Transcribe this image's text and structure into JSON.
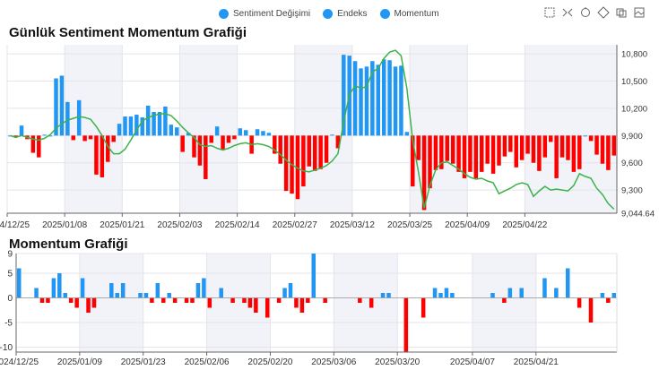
{
  "legend": {
    "items": [
      {
        "label": "Sentiment Değişimi",
        "color": "#2196f3"
      },
      {
        "label": "Endeks",
        "color": "#2196f3"
      },
      {
        "label": "Momentum",
        "color": "#2196f3"
      }
    ]
  },
  "toolbox": {
    "icons": [
      "zoom-select-icon",
      "zoom-reset-icon",
      "restore-icon",
      "fullscreen-icon",
      "data-view-icon",
      "save-image-icon"
    ]
  },
  "colors": {
    "positive": "#2196f3",
    "negative": "#ff0000",
    "line": "#3cb34a",
    "shade": "#f2f3f8"
  },
  "chart_data": [
    {
      "type": "bar",
      "title": "Günlük Sentiment Momentum Grafiği",
      "y_axis_position": "right",
      "ylim": [
        9044.64,
        10900
      ],
      "y_ticks": [
        9044.64,
        9300,
        9600,
        9900,
        10200,
        10500,
        10800
      ],
      "y_tick_labels": [
        "9,044.64",
        "9,300",
        "9,600",
        "9,900",
        "10,200",
        "10,500",
        "10,800"
      ],
      "baseline": 9900,
      "x_tick_labels": [
        "2024/12/25",
        "2025/01/08",
        "2025/01/21",
        "2025/02/03",
        "2025/02/14",
        "2025/02/27",
        "2025/03/12",
        "2025/03/25",
        "2025/04/09",
        "2025/04/22"
      ],
      "x_tick_index": [
        0,
        10,
        20,
        30,
        40,
        50,
        60,
        70,
        80,
        90
      ],
      "series": [
        {
          "name": "Endeks",
          "type": "bar",
          "values": [
            9900,
            9880,
            10010,
            9860,
            9710,
            9660,
            9910,
            9900,
            10530,
            10560,
            10270,
            9850,
            10290,
            9840,
            9860,
            9470,
            9440,
            9610,
            9830,
            10030,
            10110,
            10110,
            10130,
            10100,
            10230,
            10160,
            10160,
            10220,
            10020,
            9990,
            9720,
            9930,
            9660,
            9570,
            9420,
            9820,
            10000,
            9750,
            9820,
            9860,
            9980,
            9960,
            9700,
            9970,
            9950,
            9930,
            9700,
            9590,
            9290,
            9260,
            9200,
            9340,
            9560,
            9510,
            9530,
            9600,
            9910,
            9760,
            10790,
            10780,
            10720,
            10640,
            10660,
            10720,
            10680,
            10740,
            10730,
            10660,
            10670,
            9940,
            9340,
            9630,
            9080,
            9320,
            9520,
            9530,
            9620,
            9590,
            9500,
            9430,
            9500,
            9430,
            9500,
            9590,
            9480,
            9570,
            9670,
            9720,
            9550,
            9630,
            9700,
            9600,
            9510,
            9660,
            9830,
            9430,
            9660,
            9630,
            9500,
            9530,
            9900,
            9840,
            9690,
            9590,
            9520,
            9680
          ]
        },
        {
          "name": "Momentum",
          "type": "line",
          "values": [
            9900,
            9880,
            9900,
            9880,
            9860,
            9850,
            9870,
            9910,
            9980,
            10030,
            10070,
            10090,
            10110,
            10100,
            10080,
            10000,
            9900,
            9780,
            9700,
            9700,
            9750,
            9850,
            9960,
            10060,
            10100,
            10120,
            10140,
            10140,
            10120,
            10060,
            9990,
            9930,
            9880,
            9800,
            9780,
            9790,
            9760,
            9740,
            9760,
            9790,
            9810,
            9820,
            9800,
            9810,
            9800,
            9780,
            9740,
            9690,
            9630,
            9580,
            9540,
            9510,
            9500,
            9520,
            9540,
            9570,
            9620,
            9700,
            10050,
            10350,
            10450,
            10420,
            10440,
            10600,
            10640,
            10750,
            10820,
            10840,
            10780,
            10420,
            9850,
            9500,
            9100,
            9350,
            9520,
            9600,
            9610,
            9570,
            9530,
            9480,
            9440,
            9420,
            9430,
            9400,
            9380,
            9260,
            9290,
            9320,
            9360,
            9380,
            9360,
            9230,
            9290,
            9340,
            9300,
            9310,
            9300,
            9290,
            9350,
            9480,
            9450,
            9430,
            9320,
            9250,
            9150,
            9090
          ]
        }
      ]
    },
    {
      "type": "bar",
      "title": "Momentum Grafiği",
      "ylim": [
        -11,
        9
      ],
      "y_ticks": [
        -10,
        -5,
        0,
        5,
        9
      ],
      "y_tick_labels": [
        "-10",
        "-5",
        "0",
        "5",
        "9"
      ],
      "x_tick_labels": [
        "2024/12/25",
        "2025/01/09",
        "2025/01/23",
        "2025/02/06",
        "2025/02/20",
        "2025/03/06",
        "2025/03/20",
        "2025/04/07",
        "2025/04/21"
      ],
      "x_tick_index": [
        0,
        11,
        22,
        33,
        44,
        55,
        66,
        79,
        90
      ],
      "series": [
        {
          "name": "Sentiment Değişimi",
          "type": "bar",
          "values": [
            6,
            0,
            0,
            2,
            -1,
            -1,
            4,
            5,
            1,
            -1,
            -2,
            4,
            -3,
            -2,
            0,
            0,
            3,
            1,
            3,
            0,
            0,
            1,
            1,
            -1,
            3,
            -1,
            1,
            -1,
            0,
            -1,
            -1,
            3,
            4,
            -2,
            0,
            2,
            0,
            -1,
            0,
            -1,
            -2,
            -3,
            0,
            -4,
            0,
            -1,
            2,
            3,
            -2,
            -3,
            -1,
            9,
            0,
            -1,
            0,
            0,
            0,
            0,
            0,
            -1,
            0,
            -2,
            0,
            1,
            1,
            0,
            0,
            -11,
            0,
            0,
            -4,
            0,
            2,
            1,
            2,
            1,
            0,
            0,
            0,
            0,
            0,
            0,
            1,
            0,
            -1,
            2,
            0,
            2,
            0,
            0,
            0,
            4,
            0,
            2,
            0,
            6,
            0,
            -2,
            0,
            -5,
            0,
            1,
            -1,
            1
          ]
        }
      ]
    }
  ]
}
